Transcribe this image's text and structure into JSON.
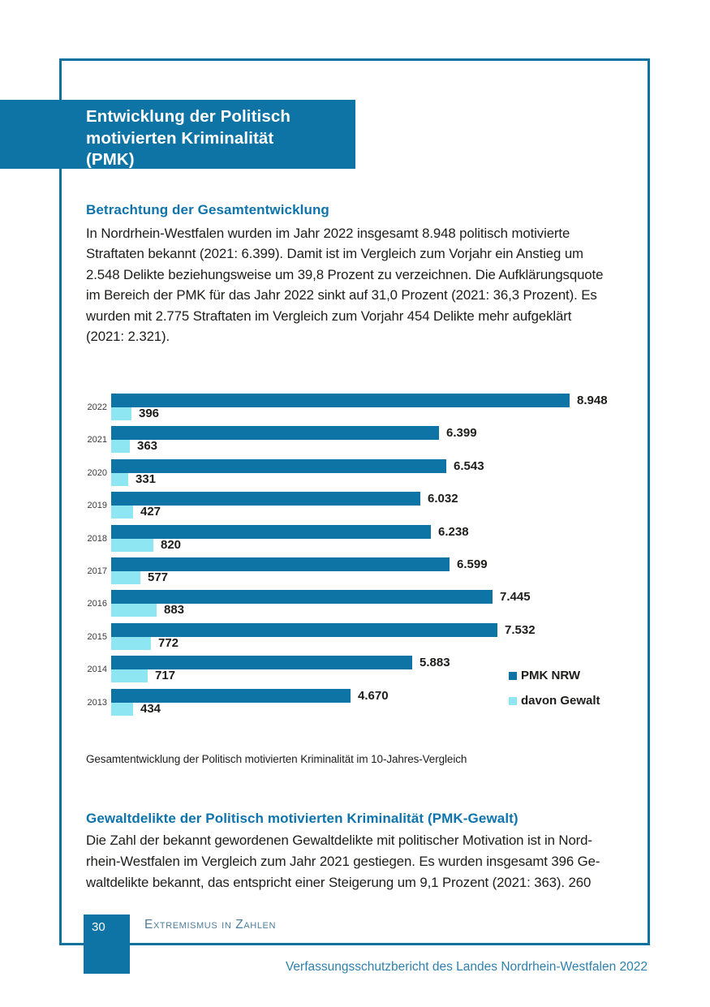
{
  "header": {
    "title": "Entwicklung der Politisch\nmotivierten Kriminalität\n(PMK)"
  },
  "section1": {
    "heading": "Betrachtung der Gesamtentwicklung",
    "body": "In Nordrhein-Westfalen wurden im Jahr 2022 insgesamt 8.948 politisch motivierte\nStraftaten bekannt (2021: 6.399). Damit ist im Vergleich zum Vorjahr ein Anstieg um\n2.548 Delikte beziehungsweise um 39,8 Prozent zu verzeichnen. Die Aufklärungsquote\nim Bereich der PMK für das Jahr 2022 sinkt auf 31,0 Prozent (2021: 36,3 Prozent). Es\nwurden mit 2.775 Straftaten im Vergleich zum Vorjahr 454 Delikte mehr aufgeklärt\n(2021: 2.321)."
  },
  "chart_data": {
    "type": "bar",
    "orientation": "horizontal",
    "title": "",
    "xlabel": "",
    "ylabel": "",
    "grid": false,
    "axis_range": [
      0,
      8948
    ],
    "legend_position": "right-bottom",
    "categories": [
      "2022",
      "2021",
      "2020",
      "2019",
      "2018",
      "2017",
      "2016",
      "2015",
      "2014",
      "2013"
    ],
    "series": [
      {
        "name": "PMK NRW",
        "color": "#0e74a6",
        "values": [
          8948,
          6399,
          6543,
          6032,
          6238,
          6599,
          7445,
          7532,
          5883,
          4670
        ],
        "labels": [
          "8.948",
          "6.399",
          "6.543",
          "6.032",
          "6.238",
          "6.599",
          "7.445",
          "7.532",
          "5.883",
          "4.670"
        ]
      },
      {
        "name": "davon Gewalt",
        "color": "#8de6f2",
        "values": [
          396,
          363,
          331,
          427,
          820,
          577,
          883,
          772,
          717,
          434
        ],
        "labels": [
          "396",
          "363",
          "331",
          "427",
          "820",
          "577",
          "883",
          "772",
          "717",
          "434"
        ]
      }
    ]
  },
  "chart_caption": "Gesamtentwicklung der Politisch motivierten Kriminalität im 10-Jahres-Vergleich",
  "section2": {
    "heading": "Gewaltdelikte der Politisch motivierten Kriminalität (PMK-Gewalt)",
    "body": "Die Zahl der bekannt gewordenen Gewaltdelikte mit politischer Motivation ist in Nord-\nrhein-Westfalen im Vergleich zum Jahr 2021 gestiegen. Es wurden insgesamt 396 Ge-\nwaltdelikte bekannt, das entspricht einer Steigerung um 9,1 Prozent (2021: 363). 260"
  },
  "footer": {
    "page_number": "30",
    "chapter": "Extremismus in Zahlen",
    "report_title": "Verfassungsschutzbericht des Landes Nordrhein-Westfalen 2022"
  },
  "colors": {
    "brand_blue": "#0e74a6",
    "frame_blue": "#11719f",
    "heading_blue": "#0e74ad",
    "light_cyan": "#8de6f2",
    "body_text": "#1d1d1b",
    "chapter_text": "#4e7d9c",
    "report_title_text": "#2e81ae"
  }
}
